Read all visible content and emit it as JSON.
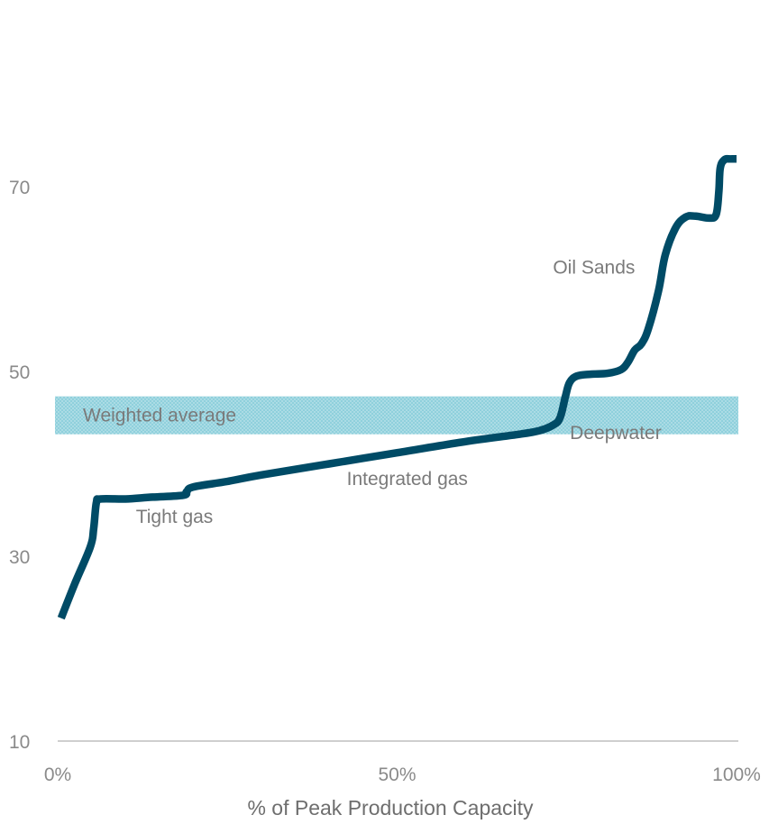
{
  "chart_data": {
    "type": "line",
    "title": "",
    "xlabel": "% of Peak Production Capacity",
    "ylabel": "",
    "xlim": [
      0,
      100
    ],
    "ylim": [
      10,
      80
    ],
    "x_ticks": [
      {
        "value": 0,
        "label": "0%"
      },
      {
        "value": 50,
        "label": "50%"
      },
      {
        "value": 100,
        "label": "100%"
      }
    ],
    "y_ticks": [
      {
        "value": 10,
        "label": "10"
      },
      {
        "value": 30,
        "label": "30"
      },
      {
        "value": 50,
        "label": "50"
      },
      {
        "value": 70,
        "label": "70"
      }
    ],
    "grid": false,
    "legend": false,
    "colors": {
      "line": "#004b66",
      "band": "#8fd0dc",
      "axis": "#bfbfbf",
      "text": "#7a7a7a"
    },
    "band": {
      "label": "Weighted average",
      "y_from": 43.2,
      "y_to": 47.3,
      "x_from": 0,
      "x_to": 100
    },
    "series": [
      {
        "x": [
          0.5,
          2.5,
          4.8,
          5.3,
          5.7,
          6.3,
          10,
          14,
          18.5,
          19,
          20,
          25,
          30,
          40,
          50,
          60,
          68,
          71,
          73,
          74,
          74.8,
          75.4,
          76.5,
          78.5,
          81,
          83,
          84,
          85,
          86,
          87,
          88.5,
          89.5,
          91,
          92.5,
          94,
          96,
          97,
          97.4,
          97.6,
          98.2,
          99,
          100
        ],
        "y": [
          23.3,
          27.0,
          31.0,
          33.0,
          35.8,
          36.2,
          36.2,
          36.4,
          36.6,
          37.0,
          37.5,
          38.1,
          38.8,
          40.0,
          41.2,
          42.4,
          43.2,
          43.6,
          44.2,
          45.0,
          47.3,
          48.8,
          49.5,
          49.7,
          49.8,
          50.2,
          51.0,
          52.3,
          53.0,
          54.6,
          58.7,
          62.6,
          65.5,
          66.7,
          66.8,
          66.6,
          67.0,
          69.5,
          72.0,
          72.9,
          73.0,
          73.0
        ]
      }
    ],
    "annotations": [
      {
        "text": "Tight gas",
        "x": 17.2,
        "y": 33.6
      },
      {
        "text": "Integrated gas",
        "x": 51.5,
        "y": 37.7
      },
      {
        "text": "Deepwater",
        "x": 82.2,
        "y": 42.7
      },
      {
        "text": "Oil Sands",
        "x": 79,
        "y": 60.6
      }
    ]
  }
}
